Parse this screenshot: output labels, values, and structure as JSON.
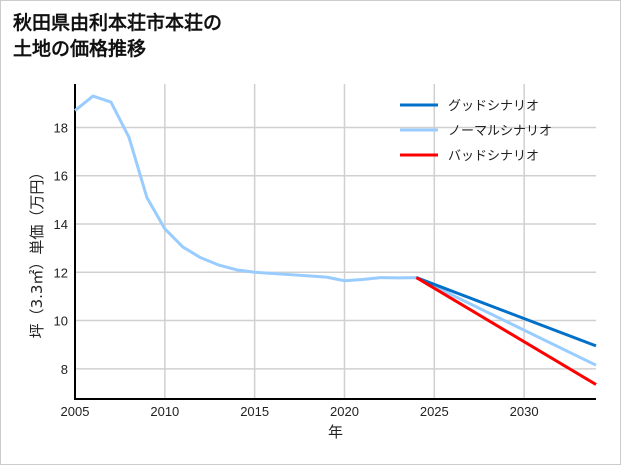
{
  "chart_data": {
    "type": "line",
    "title": "秋田県由利本荘市本荘の土地の価格推移",
    "title_lines": [
      "秋田県由利本荘市本荘の",
      "土地の価格推移"
    ],
    "xlabel": "年",
    "ylabel": "坪（3.3㎡）単価（万円）",
    "xlim": [
      2005,
      2034
    ],
    "ylim": [
      6.75,
      19.8
    ],
    "xticks": [
      2005,
      2010,
      2015,
      2020,
      2025,
      2030
    ],
    "yticks": [
      8,
      10,
      12,
      14,
      16,
      18
    ],
    "grid": true,
    "legend_position": "top-right",
    "series": [
      {
        "name": "グッドシナリオ",
        "color": "#0070c8",
        "x": [
          2024,
          2034
        ],
        "values": [
          11.78,
          8.95
        ]
      },
      {
        "name": "ノーマルシナリオ",
        "color": "#99ccff",
        "x": [
          2005,
          2006,
          2007,
          2008,
          2009,
          2010,
          2011,
          2012,
          2013,
          2014,
          2015,
          2016,
          2017,
          2018,
          2019,
          2020,
          2021,
          2022,
          2023,
          2024,
          2034
        ],
        "values": [
          18.7,
          19.3,
          19.05,
          17.6,
          15.1,
          13.8,
          13.05,
          12.6,
          12.3,
          12.1,
          12.0,
          11.95,
          11.9,
          11.85,
          11.8,
          11.65,
          11.7,
          11.78,
          11.77,
          11.78,
          8.15
        ]
      },
      {
        "name": "バッドシナリオ",
        "color": "#ff0000",
        "x": [
          2024,
          2034
        ],
        "values": [
          11.78,
          7.35
        ]
      }
    ]
  }
}
